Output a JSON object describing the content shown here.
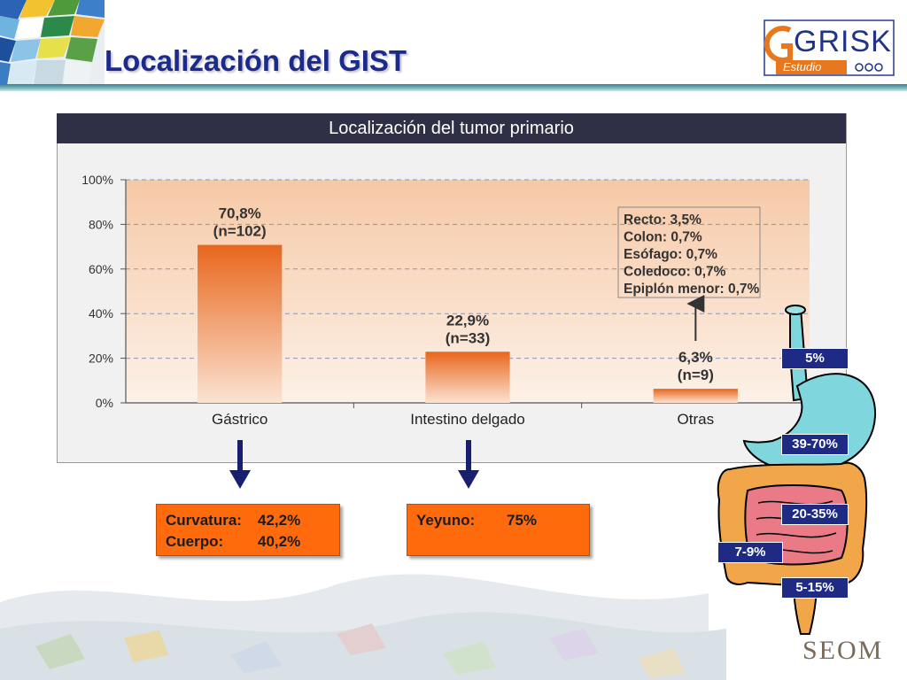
{
  "slide": {
    "title": "Localización del GIST"
  },
  "logo": {
    "word": "GRISK",
    "sub": "Estudio"
  },
  "footer_logo": "SEOM",
  "chart_data": {
    "type": "bar",
    "title": "Localización del tumor primario",
    "categories": [
      "Gástrico",
      "Intestino delgado",
      "Otras"
    ],
    "values": [
      70.8,
      22.9,
      6.3
    ],
    "value_labels": [
      "70,8%",
      "22,9%",
      "6,3%"
    ],
    "n_labels": [
      "(n=102)",
      "(n=33)",
      "(n=9)"
    ],
    "ylim": [
      0,
      100
    ],
    "yticks": [
      "0%",
      "20%",
      "40%",
      "60%",
      "80%",
      "100%"
    ],
    "ytick_values": [
      0,
      20,
      40,
      60,
      80,
      100
    ],
    "grid": true,
    "annotation": [
      "Recto: 3,5%",
      "Colon: 0,7%",
      "Esófago: 0,7%",
      "Coledoco: 0,7%",
      "Epiplón menor: 0,7%"
    ]
  },
  "callouts": {
    "gastric": [
      {
        "label": "Curvatura:",
        "value": "42,2%"
      },
      {
        "label": "Cuerpo:",
        "value": "40,2%"
      }
    ],
    "small_intestine": [
      {
        "label": "Yeyuno:",
        "value": "75%"
      }
    ]
  },
  "anatomy_badges": [
    "5%",
    "39-70%",
    "20-35%",
    "7-9%",
    "5-15%"
  ],
  "colors": {
    "bar_top": "#e8661c",
    "bar_bottom": "#fbe3d2",
    "title_blue": "#1c2a8c",
    "callout_orange": "#ff6a0d",
    "badge_navy": "#1f2a85",
    "panel_header": "#2f2f45"
  }
}
